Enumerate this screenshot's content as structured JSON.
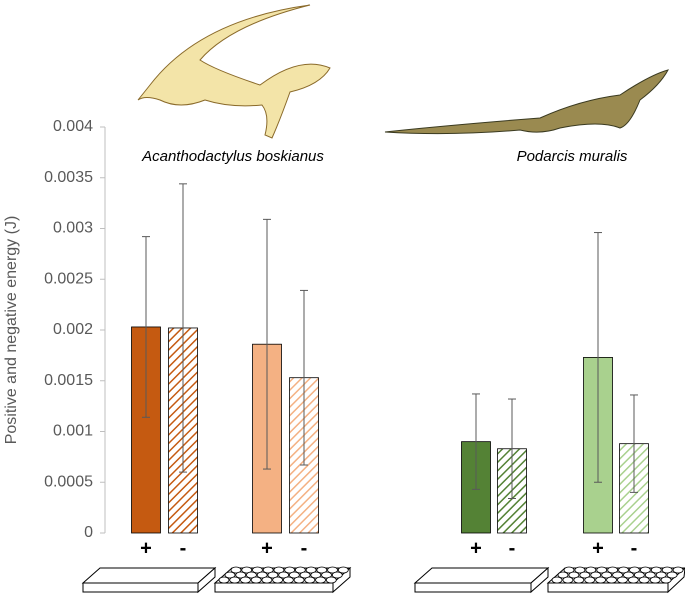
{
  "chart_data": {
    "type": "bar",
    "y_label": "Positive and negative energy (J)",
    "annotations": [
      "Acanthodactylus boskianus",
      "Podarcis muralis"
    ],
    "categories": [
      "+",
      "-",
      "+",
      "-",
      "+",
      "-",
      "+",
      "-"
    ],
    "values": [
      0.00203,
      0.00202,
      0.00186,
      0.00153,
      0.0009,
      0.00083,
      0.00173,
      0.00088
    ],
    "errors": [
      0.00089,
      0.00142,
      0.00123,
      0.00086,
      0.00047,
      0.00049,
      0.00123,
      0.00048
    ],
    "colors": [
      "#c55a11",
      "#c55a11",
      "#f4b183",
      "#f4b183",
      "#548235",
      "#548235",
      "#a9d18e",
      "#a9d18e"
    ],
    "hatched": [
      false,
      true,
      false,
      true,
      false,
      true,
      false,
      true
    ],
    "ylim": [
      0,
      0.004
    ],
    "yticks": [
      0,
      0.0005,
      0.001,
      0.0015,
      0.002,
      0.0025,
      0.003,
      0.0035,
      0.004
    ]
  }
}
